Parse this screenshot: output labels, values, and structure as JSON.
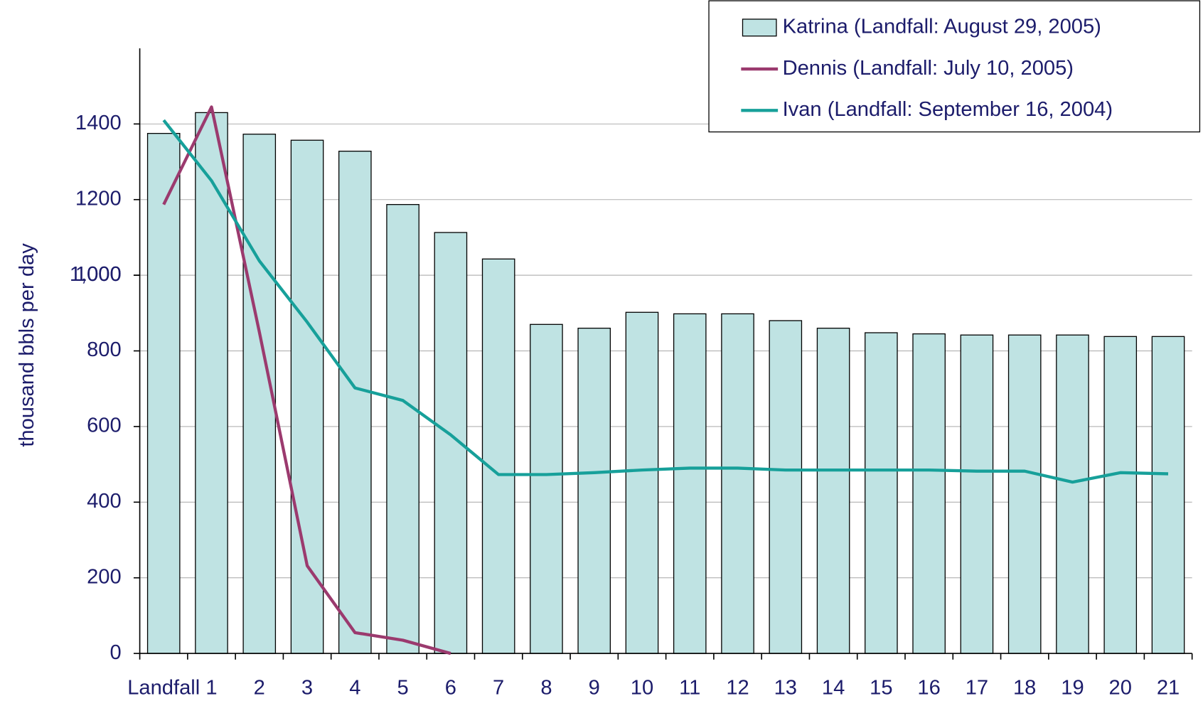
{
  "chart_data": {
    "type": "bar",
    "y_label": "thousand bbls per day",
    "categories": [
      "Landfall",
      "1",
      "2",
      "3",
      "4",
      "5",
      "6",
      "7",
      "8",
      "9",
      "10",
      "11",
      "12",
      "13",
      "14",
      "15",
      "16",
      "17",
      "18",
      "19",
      "20",
      "21"
    ],
    "series": [
      {
        "name": "Katrina (Landfall: August 29, 2005)",
        "type": "bar",
        "color": "#bfe3e3",
        "values": [
          1375,
          1430,
          1373,
          1357,
          1328,
          1187,
          1113,
          1043,
          870,
          860,
          902,
          898,
          898,
          880,
          860,
          848,
          845,
          842,
          842,
          842,
          838,
          838
        ]
      },
      {
        "name": "Dennis (Landfall: July 10, 2005)",
        "type": "line",
        "color": "#9b3a6e",
        "values": [
          1187,
          1445,
          850,
          232,
          55,
          35,
          0,
          null,
          null,
          null,
          null,
          null,
          null,
          null,
          null,
          null,
          null,
          null,
          null,
          null,
          null,
          null
        ]
      },
      {
        "name": "Ivan (Landfall: September 16, 2004)",
        "type": "line",
        "color": "#17a09a",
        "values": [
          1410,
          1250,
          1038,
          876,
          702,
          669,
          578,
          473,
          473,
          478,
          485,
          490,
          490,
          485,
          485,
          485,
          485,
          482,
          482,
          453,
          478,
          475
        ]
      }
    ],
    "ylim": [
      0,
      1600
    ],
    "yticks": [
      0,
      200,
      400,
      600,
      800,
      1000,
      1200,
      1400,
      {
        "value": 1000,
        "label": "1,000"
      }
    ],
    "grid": true
  }
}
